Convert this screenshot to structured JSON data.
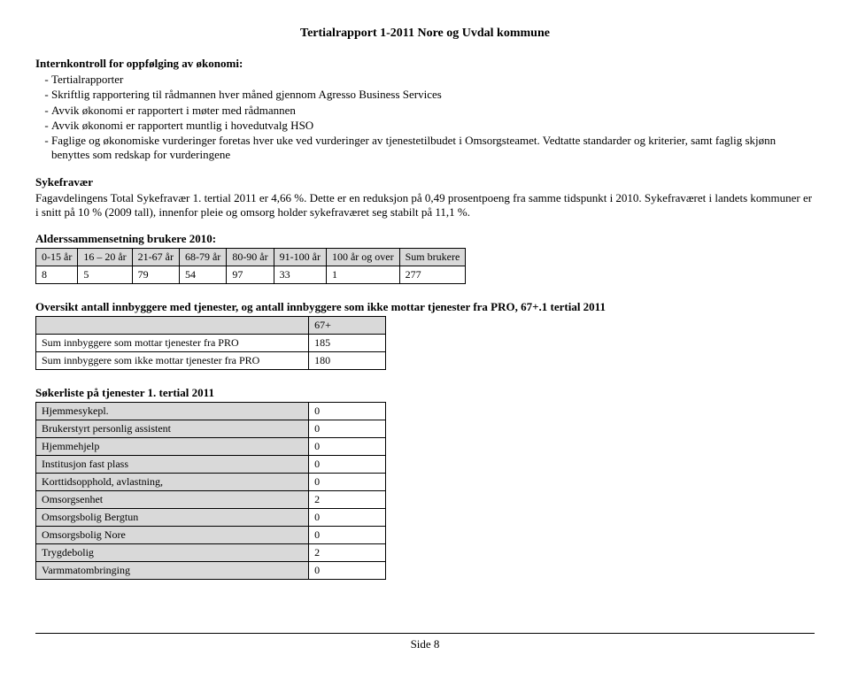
{
  "header": {
    "title": "Tertialrapport  1-2011  Nore og Uvdal kommune"
  },
  "internkontroll": {
    "title": "Internkontroll for oppfølging av økonomi:",
    "items": [
      "Tertialrapporter",
      "Skriftlig rapportering til rådmannen hver måned gjennom Agresso Business Services",
      "Avvik økonomi er rapportert i møter med rådmannen",
      "Avvik økonomi er rapportert muntlig i hovedutvalg HSO",
      "Faglige og økonomiske vurderinger foretas hver uke ved vurderinger av tjenestetilbudet i Omsorgsteamet. Vedtatte standarder og kriterier, samt faglig skjønn benyttes som redskap for vurderingene"
    ]
  },
  "sykefravaer": {
    "title": "Sykefravær",
    "text": "Fagavdelingens Total Sykefravær 1. tertial 2011 er 4,66 %. Dette er en reduksjon på 0,49 prosentpoeng fra samme tidspunkt i 2010. Sykefraværet i landets kommuner er i snitt på 10 % (2009 tall), innenfor pleie og omsorg holder sykefraværet seg stabilt på 11,1 %."
  },
  "alders": {
    "title": "Alderssammensetning brukere 2010:",
    "headers": [
      "0-15 år",
      "16 – 20 år",
      "21-67 år",
      "68-79 år",
      "80-90 år",
      "91-100 år",
      "100 år og over",
      "Sum brukere"
    ],
    "row": [
      "8",
      "5",
      "79",
      "54",
      "97",
      "33",
      "1",
      "277"
    ]
  },
  "oversikt": {
    "title": "Oversikt antall  innbyggere med tjenester, og antall innbyggere som ikke mottar tjenester fra PRO, 67+.1 tertial 2011",
    "col_header": "67+",
    "rows": [
      {
        "label": "Sum innbyggere som mottar tjenester fra PRO",
        "value": "185"
      },
      {
        "label": "Sum innbyggere som ikke mottar tjenester fra PRO",
        "value": "180"
      }
    ]
  },
  "sokerliste": {
    "title": "Søkerliste på tjenester 1. tertial 2011",
    "rows": [
      {
        "label": "Hjemmesykepl.",
        "value": "0"
      },
      {
        "label": "Brukerstyrt personlig assistent",
        "value": "0"
      },
      {
        "label": "Hjemmehjelp",
        "value": "0"
      },
      {
        "label": "Institusjon fast plass",
        "value": "0"
      },
      {
        "label": "Korttidsopphold, avlastning,",
        "value": "0"
      },
      {
        "label": "Omsorgsenhet",
        "value": "2"
      },
      {
        "label": "Omsorgsbolig Bergtun",
        "value": "0"
      },
      {
        "label": "Omsorgsbolig Nore",
        "value": "0"
      },
      {
        "label": "Trygdebolig",
        "value": "2"
      },
      {
        "label": "Varmmatombringing",
        "value": "0"
      }
    ]
  },
  "footer": {
    "text": "Side 8"
  }
}
